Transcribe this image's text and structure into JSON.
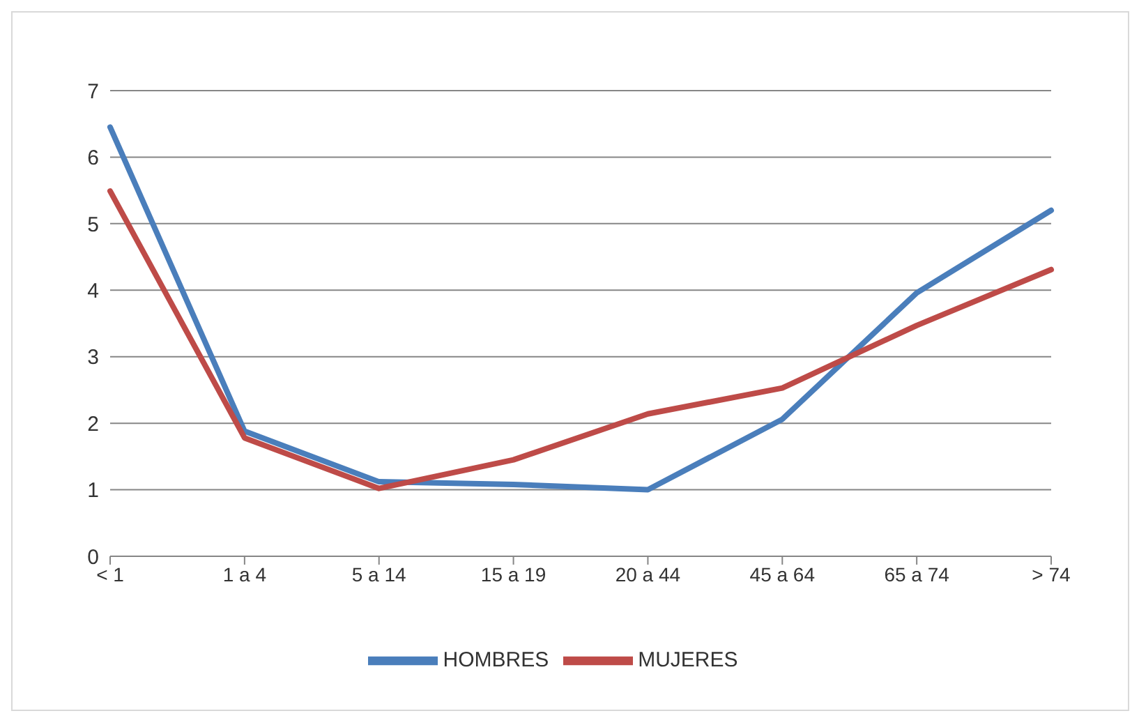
{
  "chart_data": {
    "type": "line",
    "categories": [
      "< 1",
      "1 a 4",
      "5 a 14",
      "15 a 19",
      "20 a 44",
      "45 a 64",
      "65 a 74",
      "> 74"
    ],
    "series": [
      {
        "name": "HOMBRES",
        "color": "#4a7ebb",
        "values": [
          6.45,
          1.88,
          1.12,
          1.08,
          1.0,
          2.06,
          3.96,
          5.2
        ]
      },
      {
        "name": "MUJERES",
        "color": "#be4b48",
        "values": [
          5.49,
          1.78,
          1.02,
          1.45,
          2.14,
          2.53,
          3.47,
          4.31
        ]
      }
    ],
    "ylim": [
      0,
      7
    ],
    "yticks": [
      0,
      1,
      2,
      3,
      4,
      5,
      6,
      7
    ],
    "grid": "y",
    "legend": "bottom",
    "marker": "none",
    "line_style": "solid"
  }
}
